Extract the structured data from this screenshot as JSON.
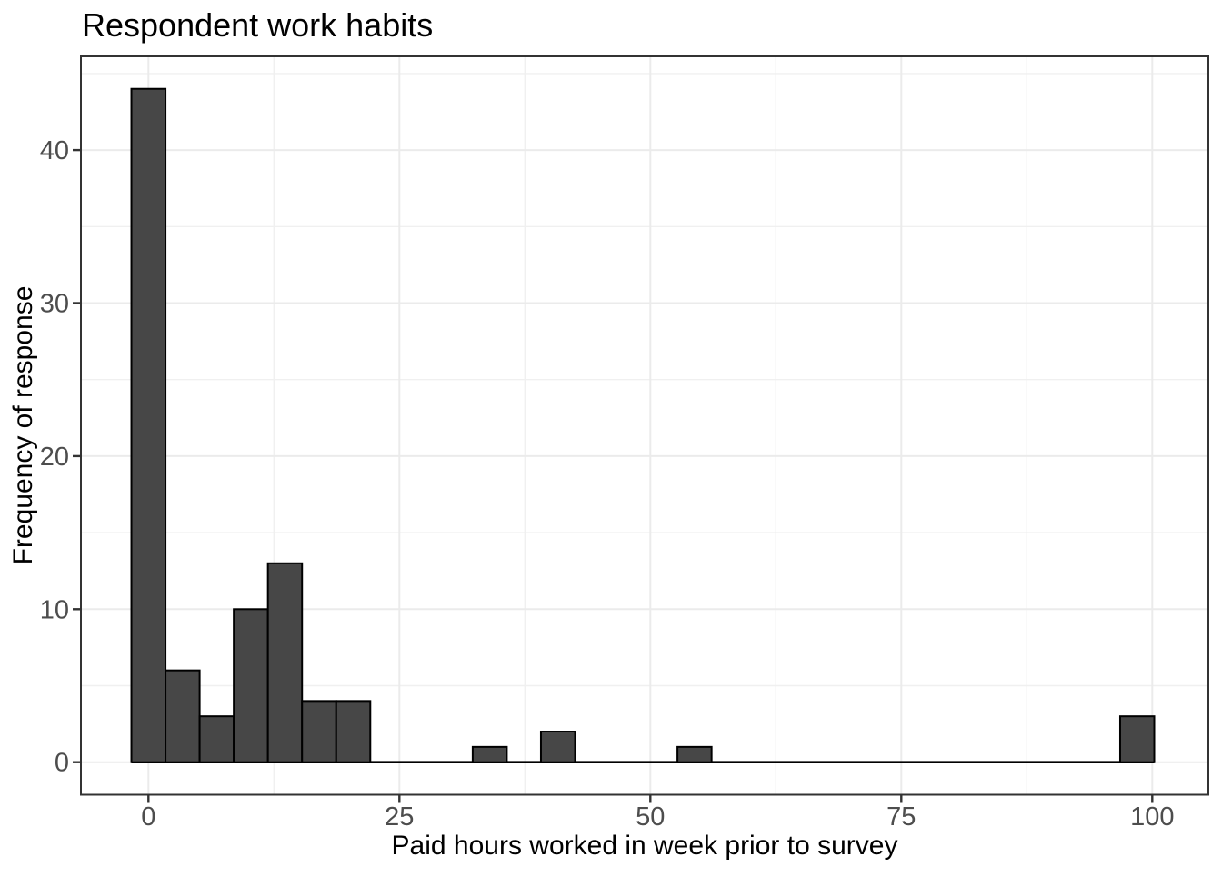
{
  "chart_data": {
    "type": "bar",
    "subtype": "histogram",
    "title": "Respondent work habits",
    "xlabel": "Paid hours worked in week prior to survey",
    "ylabel": "Frequency of response",
    "x_ticks": [
      0,
      25,
      50,
      75,
      100
    ],
    "y_ticks": [
      0,
      10,
      20,
      30,
      40
    ],
    "x_minor_gridlines": [
      12.5,
      37.5,
      62.5,
      87.5
    ],
    "y_minor_gridlines": [
      5,
      15,
      25,
      35,
      45
    ],
    "xlim": [
      -6.7,
      105.6
    ],
    "ylim": [
      -2.1,
      46.1
    ],
    "grid": "on",
    "legend_position": "none",
    "binwidth": 3.4,
    "bins": [
      {
        "center": 0,
        "count": 44
      },
      {
        "center": 3.4,
        "count": 6
      },
      {
        "center": 6.8,
        "count": 3
      },
      {
        "center": 10.2,
        "count": 10
      },
      {
        "center": 13.6,
        "count": 13
      },
      {
        "center": 17.0,
        "count": 4
      },
      {
        "center": 20.4,
        "count": 4
      },
      {
        "center": 34.0,
        "count": 1
      },
      {
        "center": 40.8,
        "count": 2
      },
      {
        "center": 54.4,
        "count": 1
      },
      {
        "center": 98.5,
        "count": 3
      }
    ],
    "zero_count_bins_drawn_as_baseline": true,
    "colors": {
      "bar_fill": "#474747",
      "bar_stroke": "#000000",
      "grid_major": "#EBEBEB",
      "grid_minor": "#F0F0F0",
      "panel_border": "#333333",
      "tick_mark": "#333333",
      "tick_text": "#4D4D4D",
      "title_text": "#000000",
      "background": "#FFFFFF"
    }
  }
}
